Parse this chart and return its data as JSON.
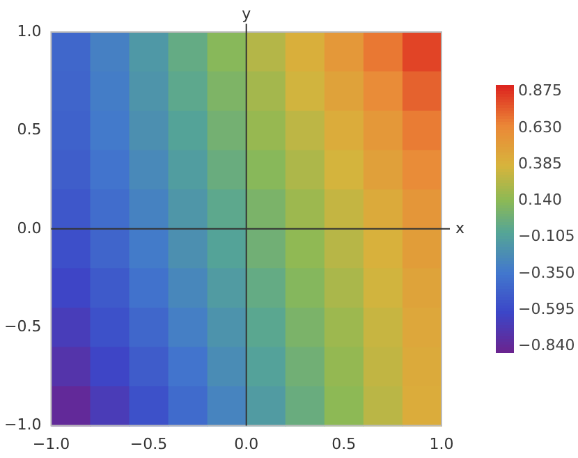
{
  "chart_data": {
    "type": "heatmap",
    "xlabel": "x",
    "ylabel": "y",
    "x": [
      -0.9,
      -0.7,
      -0.5,
      -0.3,
      -0.1,
      0.1,
      0.3,
      0.5,
      0.7,
      0.9
    ],
    "xlim": [
      -1,
      1
    ],
    "xticks": [
      {
        "value": -1,
        "label": "−1.0"
      },
      {
        "value": -0.5,
        "label": "−0.5"
      },
      {
        "value": 0,
        "label": "0.0"
      },
      {
        "value": 0.5,
        "label": "0.5"
      },
      {
        "value": 1,
        "label": "1.0"
      }
    ],
    "ylim": [
      -1,
      1
    ],
    "yticks": [
      {
        "value": -1,
        "label": "−1.0"
      },
      {
        "value": -0.5,
        "label": "−0.5"
      },
      {
        "value": 0,
        "label": "0.0"
      },
      {
        "value": 0.5,
        "label": "0.5"
      },
      {
        "value": 1,
        "label": "1.0"
      }
    ],
    "cells": [
      [
        -0.43,
        -0.29,
        -0.15,
        -0.01,
        0.13,
        0.27,
        0.41,
        0.55,
        0.69,
        0.83
      ],
      [
        -0.44,
        -0.31,
        -0.17,
        -0.04,
        0.09,
        0.22,
        0.36,
        0.49,
        0.62,
        0.75
      ],
      [
        -0.46,
        -0.33,
        -0.2,
        -0.08,
        0.05,
        0.18,
        0.3,
        0.43,
        0.55,
        0.68
      ],
      [
        -0.48,
        -0.36,
        -0.24,
        -0.12,
        0.01,
        0.13,
        0.25,
        0.37,
        0.5,
        0.62
      ],
      [
        -0.52,
        -0.4,
        -0.28,
        -0.16,
        -0.04,
        0.08,
        0.2,
        0.32,
        0.44,
        0.56
      ],
      [
        -0.56,
        -0.44,
        -0.32,
        -0.2,
        -0.08,
        0.04,
        0.16,
        0.28,
        0.4,
        0.52
      ],
      [
        -0.62,
        -0.5,
        -0.37,
        -0.25,
        -0.13,
        -0.01,
        0.12,
        0.24,
        0.36,
        0.48
      ],
      [
        -0.68,
        -0.55,
        -0.43,
        -0.3,
        -0.18,
        -0.05,
        0.08,
        0.2,
        0.33,
        0.46
      ],
      [
        -0.75,
        -0.62,
        -0.49,
        -0.36,
        -0.22,
        -0.09,
        0.04,
        0.17,
        0.31,
        0.44
      ],
      [
        -0.83,
        -0.69,
        -0.55,
        -0.41,
        -0.27,
        -0.13,
        0.01,
        0.15,
        0.29,
        0.43
      ]
    ],
    "clim": [
      -0.88,
      0.92
    ],
    "cticks": [
      {
        "value": -0.84,
        "label": "−0.840"
      },
      {
        "value": -0.595,
        "label": "−0.595"
      },
      {
        "value": -0.35,
        "label": "−0.350"
      },
      {
        "value": -0.105,
        "label": "−0.105"
      },
      {
        "value": 0.14,
        "label": "0.140"
      },
      {
        "value": 0.385,
        "label": "0.385"
      },
      {
        "value": 0.63,
        "label": "0.630"
      },
      {
        "value": 0.875,
        "label": "0.875"
      }
    ],
    "legend": false
  }
}
